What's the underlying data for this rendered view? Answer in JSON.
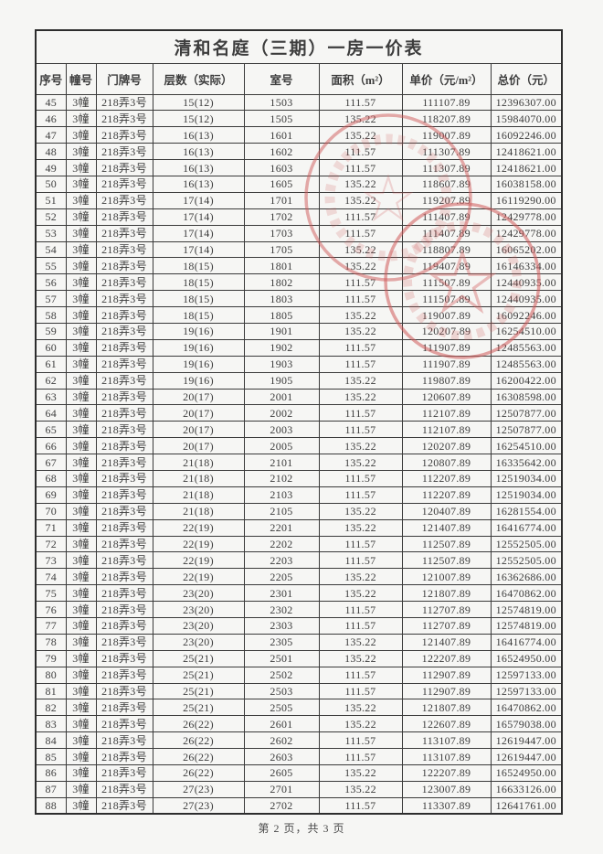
{
  "title": "清和名庭（三期）一房一价表",
  "table": {
    "columns": [
      "序号",
      "幢号",
      "门牌号",
      "层数（实际）",
      "室号",
      "面积（m²）",
      "单价（元/m²）",
      "总价（元）"
    ],
    "rows": [
      [
        "45",
        "3幢",
        "218弄3号",
        "15(12)",
        "1503",
        "111.57",
        "111107.89",
        "12396307.00"
      ],
      [
        "46",
        "3幢",
        "218弄3号",
        "15(12)",
        "1505",
        "135.22",
        "118207.89",
        "15984070.00"
      ],
      [
        "47",
        "3幢",
        "218弄3号",
        "16(13)",
        "1601",
        "135.22",
        "119007.89",
        "16092246.00"
      ],
      [
        "48",
        "3幢",
        "218弄3号",
        "16(13)",
        "1602",
        "111.57",
        "111307.89",
        "12418621.00"
      ],
      [
        "49",
        "3幢",
        "218弄3号",
        "16(13)",
        "1603",
        "111.57",
        "111307.89",
        "12418621.00"
      ],
      [
        "50",
        "3幢",
        "218弄3号",
        "16(13)",
        "1605",
        "135.22",
        "118607.89",
        "16038158.00"
      ],
      [
        "51",
        "3幢",
        "218弄3号",
        "17(14)",
        "1701",
        "135.22",
        "119207.89",
        "16119290.00"
      ],
      [
        "52",
        "3幢",
        "218弄3号",
        "17(14)",
        "1702",
        "111.57",
        "111407.89",
        "12429778.00"
      ],
      [
        "53",
        "3幢",
        "218弄3号",
        "17(14)",
        "1703",
        "111.57",
        "111407.89",
        "12429778.00"
      ],
      [
        "54",
        "3幢",
        "218弄3号",
        "17(14)",
        "1705",
        "135.22",
        "118807.89",
        "16065202.00"
      ],
      [
        "55",
        "3幢",
        "218弄3号",
        "18(15)",
        "1801",
        "135.22",
        "119407.89",
        "16146334.00"
      ],
      [
        "56",
        "3幢",
        "218弄3号",
        "18(15)",
        "1802",
        "111.57",
        "111507.89",
        "12440935.00"
      ],
      [
        "57",
        "3幢",
        "218弄3号",
        "18(15)",
        "1803",
        "111.57",
        "111507.89",
        "12440935.00"
      ],
      [
        "58",
        "3幢",
        "218弄3号",
        "18(15)",
        "1805",
        "135.22",
        "119007.89",
        "16092246.00"
      ],
      [
        "59",
        "3幢",
        "218弄3号",
        "19(16)",
        "1901",
        "135.22",
        "120207.89",
        "16254510.00"
      ],
      [
        "60",
        "3幢",
        "218弄3号",
        "19(16)",
        "1902",
        "111.57",
        "111907.89",
        "12485563.00"
      ],
      [
        "61",
        "3幢",
        "218弄3号",
        "19(16)",
        "1903",
        "111.57",
        "111907.89",
        "12485563.00"
      ],
      [
        "62",
        "3幢",
        "218弄3号",
        "19(16)",
        "1905",
        "135.22",
        "119807.89",
        "16200422.00"
      ],
      [
        "63",
        "3幢",
        "218弄3号",
        "20(17)",
        "2001",
        "135.22",
        "120607.89",
        "16308598.00"
      ],
      [
        "64",
        "3幢",
        "218弄3号",
        "20(17)",
        "2002",
        "111.57",
        "112107.89",
        "12507877.00"
      ],
      [
        "65",
        "3幢",
        "218弄3号",
        "20(17)",
        "2003",
        "111.57",
        "112107.89",
        "12507877.00"
      ],
      [
        "66",
        "3幢",
        "218弄3号",
        "20(17)",
        "2005",
        "135.22",
        "120207.89",
        "16254510.00"
      ],
      [
        "67",
        "3幢",
        "218弄3号",
        "21(18)",
        "2101",
        "135.22",
        "120807.89",
        "16335642.00"
      ],
      [
        "68",
        "3幢",
        "218弄3号",
        "21(18)",
        "2102",
        "111.57",
        "112207.89",
        "12519034.00"
      ],
      [
        "69",
        "3幢",
        "218弄3号",
        "21(18)",
        "2103",
        "111.57",
        "112207.89",
        "12519034.00"
      ],
      [
        "70",
        "3幢",
        "218弄3号",
        "21(18)",
        "2105",
        "135.22",
        "120407.89",
        "16281554.00"
      ],
      [
        "71",
        "3幢",
        "218弄3号",
        "22(19)",
        "2201",
        "135.22",
        "121407.89",
        "16416774.00"
      ],
      [
        "72",
        "3幢",
        "218弄3号",
        "22(19)",
        "2202",
        "111.57",
        "112507.89",
        "12552505.00"
      ],
      [
        "73",
        "3幢",
        "218弄3号",
        "22(19)",
        "2203",
        "111.57",
        "112507.89",
        "12552505.00"
      ],
      [
        "74",
        "3幢",
        "218弄3号",
        "22(19)",
        "2205",
        "135.22",
        "121007.89",
        "16362686.00"
      ],
      [
        "75",
        "3幢",
        "218弄3号",
        "23(20)",
        "2301",
        "135.22",
        "121807.89",
        "16470862.00"
      ],
      [
        "76",
        "3幢",
        "218弄3号",
        "23(20)",
        "2302",
        "111.57",
        "112707.89",
        "12574819.00"
      ],
      [
        "77",
        "3幢",
        "218弄3号",
        "23(20)",
        "2303",
        "111.57",
        "112707.89",
        "12574819.00"
      ],
      [
        "78",
        "3幢",
        "218弄3号",
        "23(20)",
        "2305",
        "135.22",
        "121407.89",
        "16416774.00"
      ],
      [
        "79",
        "3幢",
        "218弄3号",
        "25(21)",
        "2501",
        "135.22",
        "122207.89",
        "16524950.00"
      ],
      [
        "80",
        "3幢",
        "218弄3号",
        "25(21)",
        "2502",
        "111.57",
        "112907.89",
        "12597133.00"
      ],
      [
        "81",
        "3幢",
        "218弄3号",
        "25(21)",
        "2503",
        "111.57",
        "112907.89",
        "12597133.00"
      ],
      [
        "82",
        "3幢",
        "218弄3号",
        "25(21)",
        "2505",
        "135.22",
        "121807.89",
        "16470862.00"
      ],
      [
        "83",
        "3幢",
        "218弄3号",
        "26(22)",
        "2601",
        "135.22",
        "122607.89",
        "16579038.00"
      ],
      [
        "84",
        "3幢",
        "218弄3号",
        "26(22)",
        "2602",
        "111.57",
        "113107.89",
        "12619447.00"
      ],
      [
        "85",
        "3幢",
        "218弄3号",
        "26(22)",
        "2603",
        "111.57",
        "113107.89",
        "12619447.00"
      ],
      [
        "86",
        "3幢",
        "218弄3号",
        "26(22)",
        "2605",
        "135.22",
        "122207.89",
        "16524950.00"
      ],
      [
        "87",
        "3幢",
        "218弄3号",
        "27(23)",
        "2701",
        "135.22",
        "123007.89",
        "16633126.00"
      ],
      [
        "88",
        "3幢",
        "218弄3号",
        "27(23)",
        "2702",
        "111.57",
        "113307.89",
        "12641761.00"
      ]
    ]
  },
  "footer": {
    "page_indicator": "第 2 页，共 3 页"
  },
  "seal": {
    "color": "#d05a5a"
  }
}
